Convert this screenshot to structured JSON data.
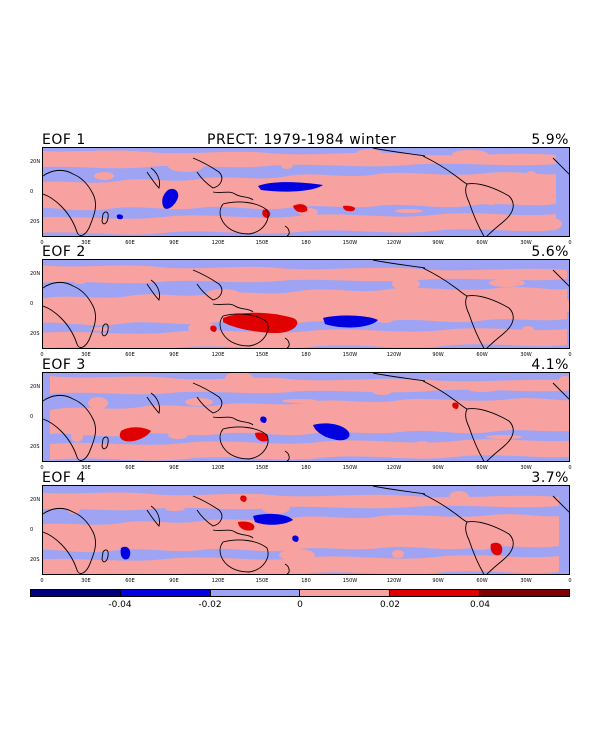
{
  "figure": {
    "title": "PRECT: 1979-1984 winter",
    "colors": {
      "neg_strong": "#00007e",
      "neg_mid": "#0000e0",
      "neg_weak": "#9ea4f3",
      "pos_weak": "#f7a1a1",
      "pos_mid": "#e00000",
      "pos_strong": "#7e0000",
      "coast": "#000000"
    }
  },
  "panels": [
    {
      "name": "EOF 1",
      "percent": "5.9%"
    },
    {
      "name": "EOF 2",
      "percent": "5.6%"
    },
    {
      "name": "EOF 3",
      "percent": "4.1%"
    },
    {
      "name": "EOF 4",
      "percent": "3.7%"
    }
  ],
  "lat_ticks": [
    "20N",
    "0",
    "20S"
  ],
  "lon_ticks": [
    "0",
    "30E",
    "60E",
    "90E",
    "120E",
    "150E",
    "180",
    "150W",
    "120W",
    "90W",
    "60W",
    "30W",
    "0"
  ],
  "colorbar": {
    "labels": [
      "-0.04",
      "-0.02",
      "0",
      "0.02",
      "0.04"
    ],
    "levels": [
      -0.06,
      -0.04,
      -0.02,
      0,
      0.02,
      0.04,
      0.06
    ]
  }
}
